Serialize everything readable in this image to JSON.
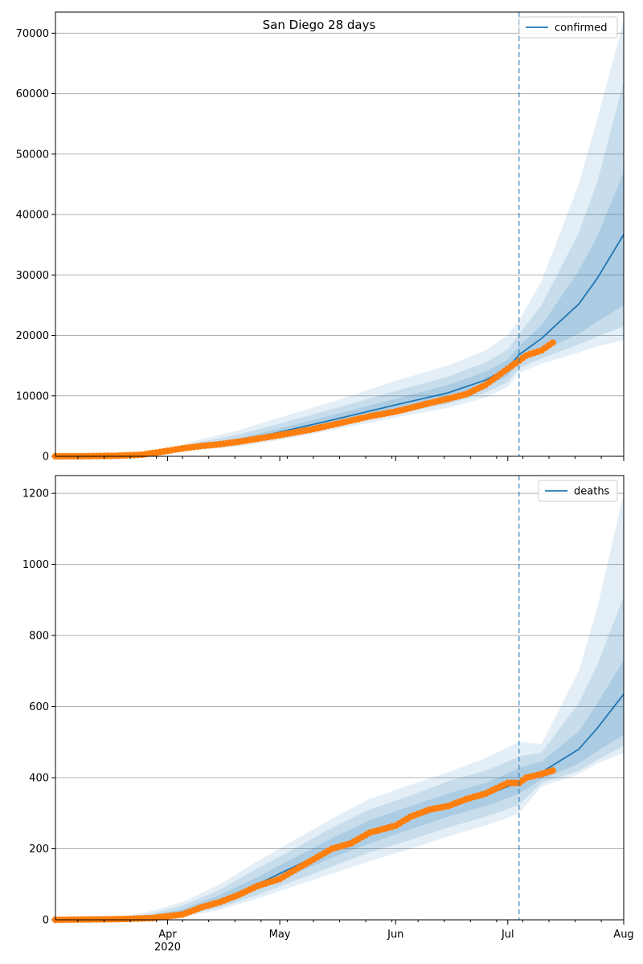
{
  "figure": {
    "title": "San Diego 28 days"
  },
  "colors": {
    "model": "#1f77b4",
    "observed": "#ff7f0e",
    "band": "#1f77b4",
    "grid": "#b0b0b0",
    "vline": "#1f77b4"
  },
  "chart_data": [
    {
      "type": "line",
      "name": "confirmed-panel",
      "title": "San Diego 28 days",
      "legend": {
        "label": "confirmed",
        "placement": "top-right"
      },
      "xlim": [
        "2020-03-02",
        "2020-08-01"
      ],
      "ylim": [
        0,
        73500
      ],
      "y_ticks": [
        0,
        10000,
        20000,
        30000,
        40000,
        50000,
        60000,
        70000
      ],
      "grid": "horizontal",
      "forecast_start": "2020-07-04",
      "model": {
        "dates": [
          "2020-03-02",
          "2020-03-15",
          "2020-03-25",
          "2020-04-01",
          "2020-04-10",
          "2020-04-20",
          "2020-05-01",
          "2020-05-15",
          "2020-06-01",
          "2020-06-15",
          "2020-06-25",
          "2020-07-01",
          "2020-07-04",
          "2020-07-10",
          "2020-07-20",
          "2020-07-25",
          "2020-08-01"
        ],
        "median": [
          0,
          50,
          250,
          800,
          1700,
          2500,
          4000,
          6000,
          8500,
          10500,
          12600,
          14600,
          16800,
          19500,
          25200,
          29500,
          36700
        ],
        "band_50": [
          [
            0,
            0
          ],
          [
            40,
            60
          ],
          [
            220,
            300
          ],
          [
            700,
            950
          ],
          [
            1500,
            2000
          ],
          [
            2200,
            3000
          ],
          [
            3600,
            4600
          ],
          [
            5400,
            6800
          ],
          [
            7700,
            9500
          ],
          [
            9500,
            11800
          ],
          [
            11400,
            14000
          ],
          [
            13300,
            16000
          ],
          [
            15600,
            18200
          ],
          [
            17400,
            21700
          ],
          [
            20300,
            30700
          ],
          [
            22300,
            36500
          ],
          [
            25000,
            47000
          ]
        ],
        "band_80": [
          [
            0,
            0
          ],
          [
            30,
            80
          ],
          [
            180,
            360
          ],
          [
            600,
            1100
          ],
          [
            1300,
            2400
          ],
          [
            1900,
            3600
          ],
          [
            3100,
            5400
          ],
          [
            4800,
            7800
          ],
          [
            7000,
            10800
          ],
          [
            8700,
            13200
          ],
          [
            10500,
            15500
          ],
          [
            12300,
            17700
          ],
          [
            14600,
            20200
          ],
          [
            16200,
            25000
          ],
          [
            18500,
            37000
          ],
          [
            19800,
            45500
          ],
          [
            21500,
            62000
          ]
        ],
        "band_95": [
          [
            0,
            0
          ],
          [
            20,
            100
          ],
          [
            150,
            420
          ],
          [
            500,
            1300
          ],
          [
            1100,
            2800
          ],
          [
            1600,
            4300
          ],
          [
            2700,
            6400
          ],
          [
            4300,
            9000
          ],
          [
            6400,
            12500
          ],
          [
            8000,
            15000
          ],
          [
            9700,
            17500
          ],
          [
            11500,
            20000
          ],
          [
            13800,
            22500
          ],
          [
            15300,
            29000
          ],
          [
            17200,
            45000
          ],
          [
            18200,
            56000
          ],
          [
            19200,
            72000
          ]
        ]
      },
      "observed": {
        "dates": [
          "2020-03-02",
          "2020-03-10",
          "2020-03-18",
          "2020-03-25",
          "2020-03-31",
          "2020-04-05",
          "2020-04-10",
          "2020-04-15",
          "2020-04-20",
          "2020-04-25",
          "2020-05-01",
          "2020-05-10",
          "2020-05-15",
          "2020-05-20",
          "2020-05-25",
          "2020-06-01",
          "2020-06-05",
          "2020-06-10",
          "2020-06-15",
          "2020-06-20",
          "2020-06-25",
          "2020-07-01",
          "2020-07-04",
          "2020-07-06",
          "2020-07-10",
          "2020-07-13"
        ],
        "values": [
          0,
          20,
          80,
          250,
          800,
          1300,
          1700,
          2000,
          2400,
          2900,
          3500,
          4500,
          5200,
          5900,
          6600,
          7400,
          8000,
          8800,
          9500,
          10300,
          11800,
          14500,
          15800,
          16700,
          17500,
          18800
        ]
      }
    },
    {
      "type": "line",
      "name": "deaths-panel",
      "legend": {
        "label": "deaths",
        "placement": "top-right"
      },
      "xlim": [
        "2020-03-02",
        "2020-08-01"
      ],
      "ylim": [
        0,
        1250
      ],
      "y_ticks": [
        0,
        200,
        400,
        600,
        800,
        1000,
        1200
      ],
      "x_ticks": [
        {
          "date": "2020-04-01",
          "label": "Apr",
          "sublabel": "2020"
        },
        {
          "date": "2020-05-01",
          "label": "May"
        },
        {
          "date": "2020-06-01",
          "label": "Jun"
        },
        {
          "date": "2020-07-01",
          "label": "Jul"
        },
        {
          "date": "2020-08-01",
          "label": "Aug"
        }
      ],
      "grid": "horizontal",
      "forecast_start": "2020-07-04",
      "model": {
        "dates": [
          "2020-03-02",
          "2020-03-20",
          "2020-03-28",
          "2020-04-05",
          "2020-04-15",
          "2020-04-25",
          "2020-05-05",
          "2020-05-15",
          "2020-05-25",
          "2020-06-05",
          "2020-06-15",
          "2020-06-25",
          "2020-07-01",
          "2020-07-04",
          "2020-07-10",
          "2020-07-20",
          "2020-07-25",
          "2020-08-01"
        ],
        "median": [
          0,
          2,
          8,
          22,
          55,
          100,
          150,
          200,
          245,
          285,
          320,
          350,
          375,
          392,
          415,
          480,
          540,
          635
        ],
        "band_50": [
          [
            0,
            0
          ],
          [
            1,
            4
          ],
          [
            5,
            12
          ],
          [
            16,
            30
          ],
          [
            45,
            70
          ],
          [
            85,
            120
          ],
          [
            130,
            175
          ],
          [
            175,
            230
          ],
          [
            215,
            280
          ],
          [
            255,
            320
          ],
          [
            290,
            355
          ],
          [
            320,
            385
          ],
          [
            342,
            412
          ],
          [
            355,
            428
          ],
          [
            395,
            445
          ],
          [
            440,
            530
          ],
          [
            475,
            610
          ],
          [
            520,
            730
          ]
        ],
        "band_80": [
          [
            0,
            0
          ],
          [
            0,
            6
          ],
          [
            3,
            18
          ],
          [
            12,
            40
          ],
          [
            35,
            85
          ],
          [
            70,
            145
          ],
          [
            110,
            200
          ],
          [
            150,
            260
          ],
          [
            190,
            310
          ],
          [
            225,
            350
          ],
          [
            260,
            390
          ],
          [
            290,
            420
          ],
          [
            312,
            445
          ],
          [
            325,
            460
          ],
          [
            385,
            470
          ],
          [
            420,
            610
          ],
          [
            450,
            720
          ],
          [
            490,
            910
          ]
        ],
        "band_95": [
          [
            0,
            0
          ],
          [
            0,
            9
          ],
          [
            2,
            25
          ],
          [
            8,
            50
          ],
          [
            28,
            100
          ],
          [
            60,
            165
          ],
          [
            95,
            225
          ],
          [
            130,
            285
          ],
          [
            165,
            340
          ],
          [
            200,
            380
          ],
          [
            235,
            415
          ],
          [
            265,
            455
          ],
          [
            287,
            485
          ],
          [
            300,
            500
          ],
          [
            375,
            495
          ],
          [
            410,
            700
          ],
          [
            440,
            880
          ],
          [
            470,
            1200
          ]
        ]
      },
      "observed": {
        "dates": [
          "2020-03-02",
          "2020-03-20",
          "2020-03-28",
          "2020-04-05",
          "2020-04-10",
          "2020-04-15",
          "2020-04-20",
          "2020-04-25",
          "2020-05-01",
          "2020-05-05",
          "2020-05-10",
          "2020-05-15",
          "2020-05-20",
          "2020-05-25",
          "2020-06-01",
          "2020-06-05",
          "2020-06-10",
          "2020-06-15",
          "2020-06-20",
          "2020-06-25",
          "2020-07-01",
          "2020-07-04",
          "2020-07-06",
          "2020-07-10",
          "2020-07-13"
        ],
        "values": [
          0,
          2,
          5,
          15,
          35,
          50,
          70,
          95,
          115,
          140,
          170,
          200,
          215,
          245,
          265,
          290,
          310,
          320,
          340,
          355,
          385,
          385,
          400,
          410,
          420
        ]
      }
    }
  ]
}
